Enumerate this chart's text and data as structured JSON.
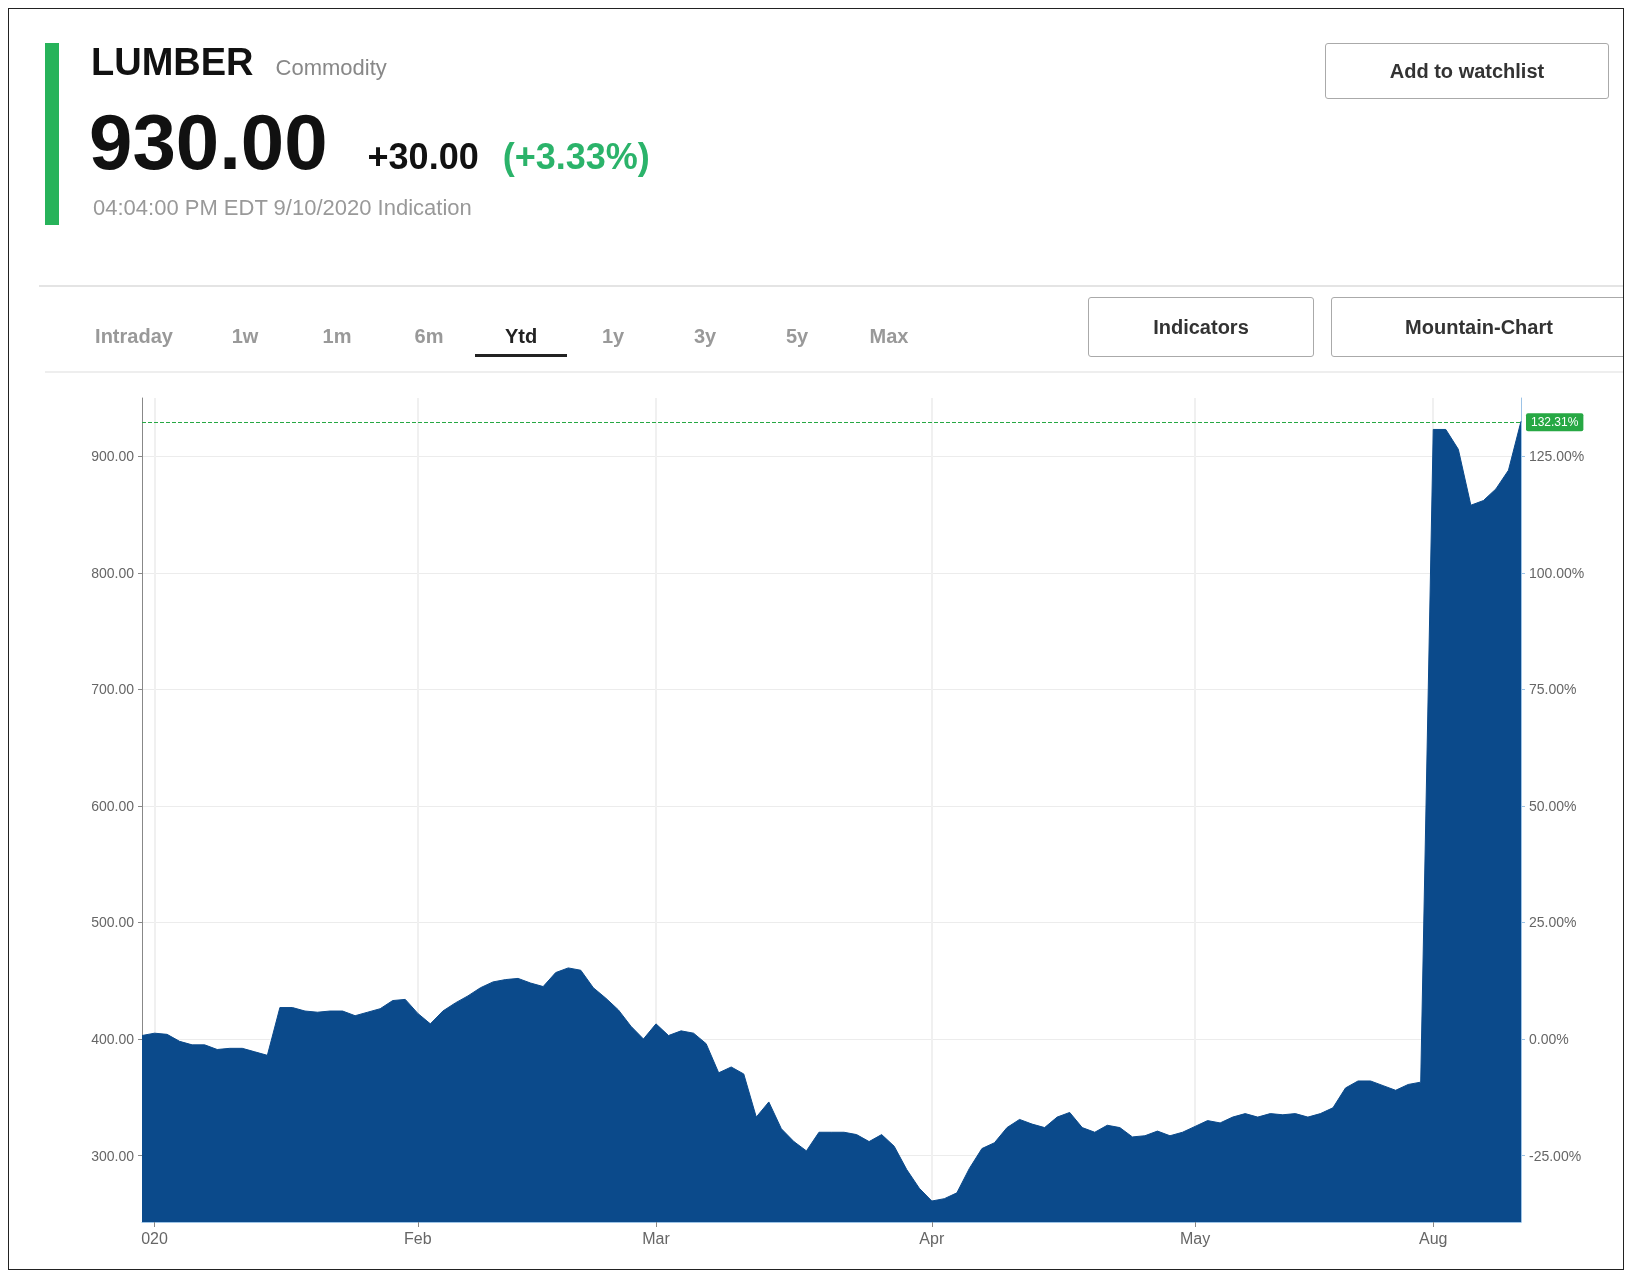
{
  "chart_data": {
    "type": "area",
    "title": "LUMBER",
    "subtitle": "Commodity",
    "annotations": [
      "930.00",
      "+30.00",
      "(+3.33%)",
      "04:04:00 PM EDT 9/10/2020 Indication",
      "Add to watchlist",
      "Intraday",
      "1w",
      "1m",
      "6m",
      "Ytd",
      "1y",
      "3y",
      "5y",
      "Max",
      "Indicators",
      "Mountain-Chart"
    ],
    "categories": [
      null,
      "020",
      null,
      null,
      null,
      null,
      null,
      null,
      null,
      null,
      null,
      null,
      null,
      null,
      null,
      null,
      null,
      null,
      null,
      null,
      null,
      null,
      "Feb",
      null,
      null,
      null,
      null,
      null,
      null,
      null,
      null,
      null,
      null,
      null,
      null,
      null,
      null,
      null,
      null,
      null,
      null,
      "Mar",
      null,
      null,
      null,
      null,
      null,
      null,
      null,
      null,
      null,
      null,
      null,
      null,
      null,
      null,
      null,
      null,
      null,
      null,
      null,
      null,
      null,
      "Apr",
      null,
      null,
      null,
      null,
      null,
      null,
      null,
      null,
      null,
      null,
      null,
      null,
      null,
      null,
      null,
      null,
      null,
      null,
      null,
      null,
      "May",
      null,
      null,
      null,
      null,
      null,
      null,
      null,
      null,
      null,
      null,
      null,
      null,
      null,
      null,
      null,
      null,
      null,
      null,
      "Aug",
      null,
      null,
      null,
      null,
      null,
      null,
      null
    ],
    "series": [
      {
        "color": "#0b4a8b",
        "values": [
          403,
          405,
          404,
          398,
          395,
          395,
          391,
          392,
          392,
          389,
          386,
          427,
          427,
          424,
          423,
          424,
          424,
          420,
          423,
          426,
          433,
          434,
          422,
          413,
          424,
          431,
          437,
          444,
          449,
          451,
          452,
          448,
          445,
          457,
          461,
          459,
          444,
          435,
          425,
          411,
          400,
          413,
          403,
          407,
          405,
          396,
          371,
          376,
          370,
          333,
          346,
          323,
          312,
          304,
          320,
          320,
          320,
          318,
          312,
          318,
          308,
          288,
          272,
          261,
          263,
          268,
          289,
          306,
          311,
          324,
          331,
          327,
          324,
          333,
          337,
          324,
          320,
          326,
          324,
          316,
          317,
          321,
          317,
          320,
          325,
          330,
          328,
          333,
          336,
          333,
          336,
          335,
          336,
          333,
          336,
          341,
          358,
          364,
          364,
          360,
          356,
          361,
          363,
          923,
          923,
          906,
          858,
          862,
          872,
          888,
          930
        ]
      }
    ],
    "ylim": [
      243,
      950
    ],
    "yticks": [
      {
        "value": 300,
        "label": "300.00"
      },
      {
        "value": 400,
        "label": "400.00"
      },
      {
        "value": 500,
        "label": "500.00"
      },
      {
        "value": 600,
        "label": "600.00"
      },
      {
        "value": 700,
        "label": "700.00"
      },
      {
        "value": 800,
        "label": "800.00"
      },
      {
        "value": 900,
        "label": "900.00"
      }
    ],
    "y2lim": [
      -39.25,
      137.5
    ],
    "y2ticks": [
      {
        "value": -25,
        "label": "-25.00%"
      },
      {
        "value": 0,
        "label": "0.00%"
      },
      {
        "value": 25,
        "label": "25.00%"
      },
      {
        "value": 50,
        "label": "50.00%"
      },
      {
        "value": 75,
        "label": "75.00%"
      },
      {
        "value": 100,
        "label": "100.00%"
      },
      {
        "value": 125,
        "label": "125.00%"
      }
    ],
    "ref_lines": [
      {
        "axis": "y2",
        "value": 132.31,
        "label": "132.31%",
        "color": "#27a844",
        "line_style": "dashed"
      }
    ],
    "grid": true,
    "marker": "none"
  }
}
